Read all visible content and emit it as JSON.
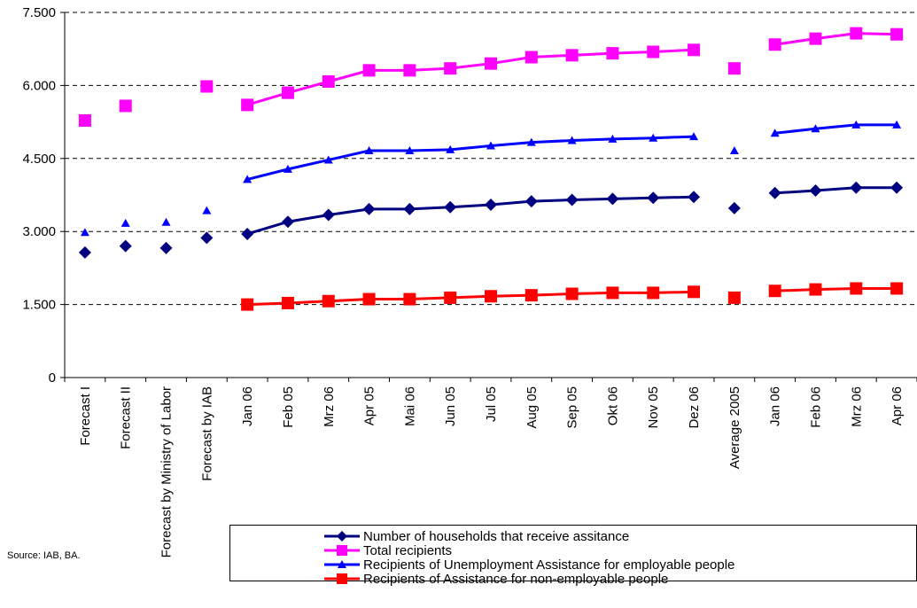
{
  "chart_data": {
    "type": "line",
    "categories": [
      "Forecast I",
      "Forecast II",
      "Forecast by Ministry of Labor",
      "Forecast by IAB",
      "Jan 06",
      "Feb 05",
      "Mrz 06",
      "Apr 05",
      "Mai 06",
      "Jun 05",
      "Jul 05",
      "Aug 05",
      "Sep 05",
      "Okt 06",
      "Nov 05",
      "Dez 06",
      "Average 2005",
      "Jan 06",
      "Feb 06",
      "Mrz 06",
      "Apr 06"
    ],
    "yticks": [
      "0",
      "1.500",
      "3.000",
      "4.500",
      "6.000",
      "7.500"
    ],
    "ytick_values": [
      0,
      1500,
      3000,
      4500,
      6000,
      7500
    ],
    "ylim": [
      0,
      7500
    ],
    "grid": "dashed horizontal",
    "source": "Source: IAB, BA.",
    "series": [
      {
        "name": "Number of households that receive assitance",
        "color": "#000080",
        "marker": "diamond",
        "groups": [
          {
            "style": "markers",
            "points": [
              [
                0,
                2570
              ],
              [
                1,
                2700
              ],
              [
                2,
                2660
              ],
              [
                3,
                2870
              ]
            ]
          },
          {
            "style": "line",
            "points": [
              [
                4,
                2950
              ],
              [
                5,
                3200
              ],
              [
                6,
                3340
              ],
              [
                7,
                3460
              ],
              [
                8,
                3460
              ],
              [
                9,
                3500
              ],
              [
                10,
                3550
              ],
              [
                11,
                3620
              ],
              [
                12,
                3650
              ],
              [
                13,
                3670
              ],
              [
                14,
                3690
              ],
              [
                15,
                3710
              ]
            ]
          },
          {
            "style": "markers",
            "points": [
              [
                16,
                3480
              ]
            ]
          },
          {
            "style": "line",
            "points": [
              [
                17,
                3790
              ],
              [
                18,
                3840
              ],
              [
                19,
                3900
              ],
              [
                20,
                3900
              ]
            ]
          }
        ]
      },
      {
        "name": "Total recipients",
        "color": "#FF00FF",
        "marker": "square",
        "groups": [
          {
            "style": "markers",
            "points": [
              [
                0,
                5280
              ],
              [
                1,
                5580
              ],
              [
                3,
                5980
              ]
            ]
          },
          {
            "style": "line",
            "points": [
              [
                4,
                5600
              ],
              [
                5,
                5850
              ],
              [
                6,
                6080
              ],
              [
                7,
                6310
              ],
              [
                8,
                6310
              ],
              [
                9,
                6350
              ],
              [
                10,
                6450
              ],
              [
                11,
                6580
              ],
              [
                12,
                6620
              ],
              [
                13,
                6660
              ],
              [
                14,
                6690
              ],
              [
                15,
                6730
              ]
            ]
          },
          {
            "style": "markers",
            "points": [
              [
                16,
                6350
              ]
            ]
          },
          {
            "style": "line",
            "points": [
              [
                17,
                6840
              ],
              [
                18,
                6960
              ],
              [
                19,
                7070
              ],
              [
                20,
                7050
              ]
            ]
          }
        ]
      },
      {
        "name": "Recipients of Unemployment Assistance for employable people",
        "color": "#0000FF",
        "marker": "triangle",
        "groups": [
          {
            "style": "markers",
            "points": [
              [
                0,
                2980
              ],
              [
                1,
                3170
              ],
              [
                2,
                3190
              ],
              [
                3,
                3430
              ]
            ]
          },
          {
            "style": "line",
            "points": [
              [
                4,
                4070
              ],
              [
                5,
                4280
              ],
              [
                6,
                4470
              ],
              [
                7,
                4660
              ],
              [
                8,
                4660
              ],
              [
                9,
                4680
              ],
              [
                10,
                4760
              ],
              [
                11,
                4830
              ],
              [
                12,
                4870
              ],
              [
                13,
                4900
              ],
              [
                14,
                4920
              ],
              [
                15,
                4950
              ]
            ]
          },
          {
            "style": "markers",
            "points": [
              [
                16,
                4660
              ]
            ]
          },
          {
            "style": "line",
            "points": [
              [
                17,
                5020
              ],
              [
                18,
                5110
              ],
              [
                19,
                5190
              ],
              [
                20,
                5190
              ]
            ]
          }
        ]
      },
      {
        "name": "Recipients of Assistance for non-employable people",
        "color": "#FF0000",
        "marker": "square",
        "groups": [
          {
            "style": "line",
            "points": [
              [
                4,
                1500
              ],
              [
                5,
                1530
              ],
              [
                6,
                1570
              ],
              [
                7,
                1610
              ],
              [
                8,
                1610
              ],
              [
                9,
                1640
              ],
              [
                10,
                1670
              ],
              [
                11,
                1690
              ],
              [
                12,
                1720
              ],
              [
                13,
                1740
              ],
              [
                14,
                1740
              ],
              [
                15,
                1760
              ]
            ]
          },
          {
            "style": "markers",
            "points": [
              [
                16,
                1640
              ]
            ]
          },
          {
            "style": "line",
            "points": [
              [
                17,
                1780
              ],
              [
                18,
                1810
              ],
              [
                19,
                1830
              ],
              [
                20,
                1830
              ]
            ]
          }
        ]
      }
    ]
  }
}
